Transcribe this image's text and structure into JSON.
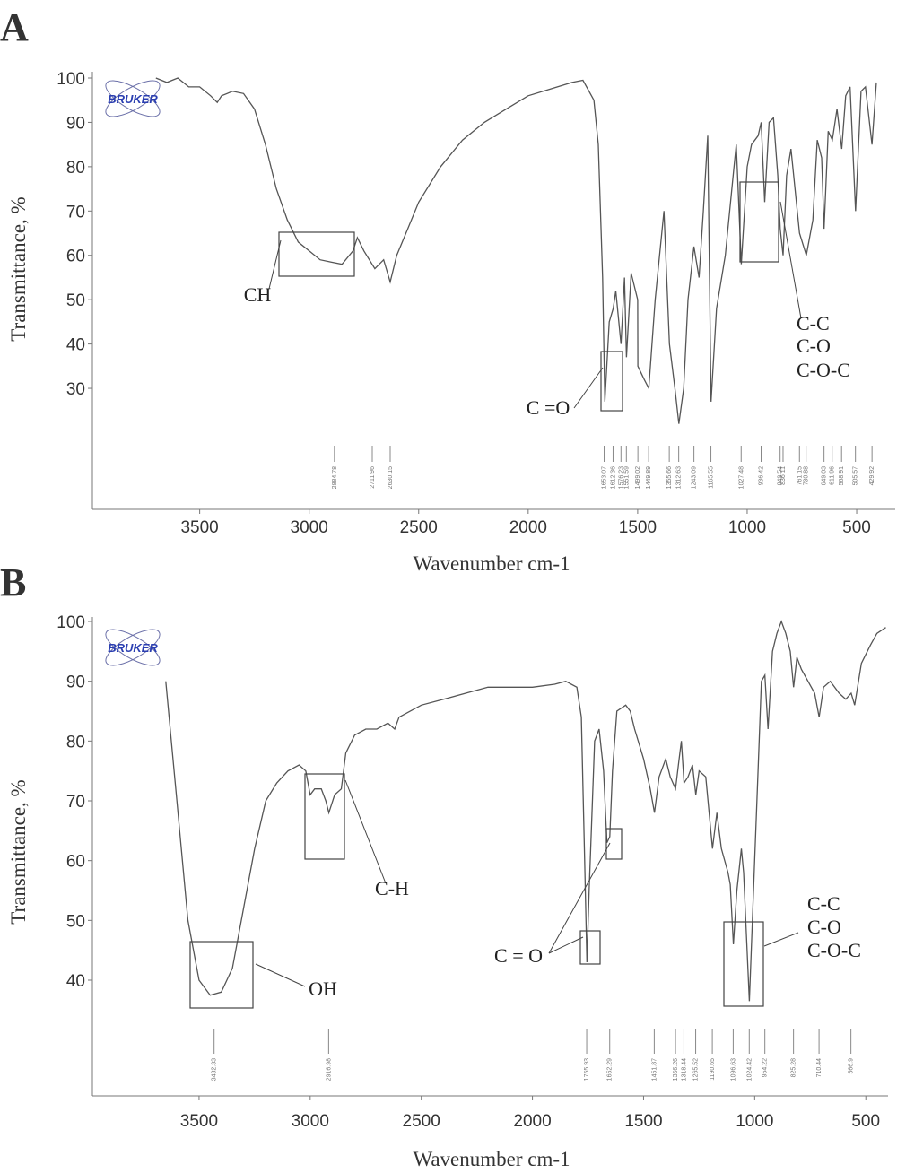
{
  "chart_data": [
    {
      "type": "line",
      "panel": "A",
      "logo": "BRUKER",
      "xlabel": "Wavenumber cm-1",
      "ylabel": "Transmittance, %",
      "xlim": [
        3990,
        324
      ],
      "ylim": [
        2.7,
        100
      ],
      "xticks": [
        3500,
        3000,
        2500,
        2000,
        1500,
        1000,
        500
      ],
      "yticks": [
        30,
        40,
        50,
        60,
        70,
        80,
        90,
        100
      ],
      "grid": false,
      "series": [
        {
          "color": "#555555",
          "x": [
            3700,
            3650,
            3600,
            3550,
            3500,
            3450,
            3420,
            3400,
            3350,
            3300,
            3250,
            3200,
            3150,
            3100,
            3050,
            3000,
            2950,
            2900,
            2850,
            2800,
            2780,
            2750,
            2700,
            2660,
            2630,
            2600,
            2550,
            2500,
            2400,
            2300,
            2200,
            2100,
            2000,
            1900,
            1800,
            1750,
            1700,
            1680,
            1660,
            1650,
            1630,
            1612,
            1600,
            1576,
            1560,
            1551,
            1530,
            1500,
            1499,
            1470,
            1449,
            1420,
            1400,
            1380,
            1355,
            1330,
            1312,
            1290,
            1270,
            1243,
            1220,
            1200,
            1180,
            1165,
            1140,
            1100,
            1060,
            1050,
            1027,
            1000,
            980,
            950,
            936,
            920,
            900,
            880,
            860,
            849,
            836,
            820,
            800,
            761,
            730,
            700,
            680,
            660,
            649,
            630,
            611,
            590,
            568,
            550,
            530,
            505,
            480,
            460,
            430,
            410
          ],
          "values": [
            100,
            99,
            100,
            98,
            98,
            96,
            94.5,
            96,
            97,
            96.5,
            93,
            85,
            75,
            68,
            63,
            61,
            59,
            58.5,
            58,
            61,
            64,
            61,
            57,
            59,
            54,
            60,
            66,
            72,
            80,
            86,
            90,
            93,
            96,
            97.5,
            99,
            99.5,
            95,
            85,
            55,
            27,
            45,
            48,
            52,
            40,
            55,
            37,
            56,
            50,
            35,
            32,
            30,
            50,
            60,
            70,
            40,
            30,
            22,
            30,
            50,
            62,
            55,
            70,
            87,
            27,
            48,
            60,
            80,
            85,
            58,
            80,
            85,
            87,
            90,
            72,
            90,
            91,
            78,
            66,
            60,
            78,
            84,
            65,
            60,
            68,
            86,
            82,
            66,
            88,
            86,
            93,
            84,
            96,
            98,
            70,
            97,
            98,
            85,
            99
          ]
        }
      ],
      "peaks": [
        2884.78,
        2711.96,
        2630.15,
        1653.07,
        1612.36,
        1576.23,
        1551.59,
        1499.02,
        1449.89,
        1355.66,
        1312.63,
        1243.09,
        1165.55,
        1027.48,
        936.42,
        849.54,
        836.11,
        761.15,
        730.88,
        649.03,
        611.96,
        568.91,
        505.57,
        429.92
      ],
      "annotations": [
        "CH",
        "C =O",
        "C-C",
        "C-O",
        "C-O-C"
      ]
    },
    {
      "type": "line",
      "panel": "B",
      "logo": "BRUKER",
      "xlabel": "Wavenumber cm-1",
      "ylabel": "Transmittance, %",
      "xlim": [
        3980,
        400
      ],
      "ylim": [
        20.65,
        100
      ],
      "xticks": [
        3500,
        3000,
        2500,
        2000,
        1500,
        1000,
        500
      ],
      "yticks": [
        40,
        50,
        60,
        70,
        80,
        90,
        100
      ],
      "grid": false,
      "series": [
        {
          "color": "#555555",
          "x": [
            3650,
            3600,
            3550,
            3500,
            3450,
            3400,
            3350,
            3300,
            3250,
            3200,
            3150,
            3100,
            3050,
            3020,
            3000,
            2980,
            2950,
            2930,
            2916,
            2890,
            2860,
            2840,
            2800,
            2750,
            2700,
            2650,
            2620,
            2600,
            2500,
            2400,
            2300,
            2200,
            2100,
            2000,
            1900,
            1850,
            1800,
            1780,
            1765,
            1755,
            1745,
            1720,
            1700,
            1680,
            1665,
            1652,
            1640,
            1620,
            1580,
            1560,
            1540,
            1500,
            1470,
            1451,
            1430,
            1400,
            1380,
            1356,
            1340,
            1330,
            1318,
            1300,
            1280,
            1265,
            1250,
            1220,
            1200,
            1190,
            1170,
            1150,
            1120,
            1110,
            1096,
            1080,
            1060,
            1050,
            1024,
            1000,
            985,
            970,
            954,
            940,
            920,
            900,
            880,
            860,
            840,
            825,
            810,
            790,
            760,
            730,
            710,
            690,
            660,
            620,
            590,
            566,
            550,
            520,
            480,
            450,
            410
          ],
          "values": [
            90,
            70,
            50,
            40,
            37.5,
            38,
            42,
            52,
            62,
            70,
            73,
            75,
            76,
            75,
            71,
            72,
            72,
            70,
            68,
            71,
            72,
            78,
            81,
            82,
            82,
            83,
            82,
            84,
            86,
            87,
            88,
            89,
            89,
            89,
            89.5,
            90,
            89,
            84,
            60,
            43,
            55,
            80,
            82,
            75,
            63,
            64,
            75,
            85,
            86,
            85,
            82,
            77,
            72,
            68,
            74,
            77,
            74,
            72,
            77,
            80,
            73,
            74,
            76,
            71,
            75,
            74,
            66,
            62,
            68,
            62,
            58,
            56,
            46,
            55,
            62,
            58,
            36.5,
            60,
            75,
            90,
            91,
            82,
            95,
            98,
            100,
            98,
            95,
            89,
            94,
            92,
            90,
            88,
            84,
            89,
            90,
            88,
            87,
            88,
            86,
            93,
            96,
            98,
            99
          ]
        }
      ],
      "peaks": [
        3432.33,
        2916.98,
        1755.93,
        1652.29,
        1451.87,
        1356.26,
        1318.44,
        1265.52,
        1190.65,
        1096.63,
        1024.42,
        954.22,
        825.28,
        710.44,
        566.9
      ],
      "annotations": [
        "OH",
        "C-H",
        "C = O",
        "C-C",
        "C-O",
        "C-O-C"
      ]
    }
  ]
}
